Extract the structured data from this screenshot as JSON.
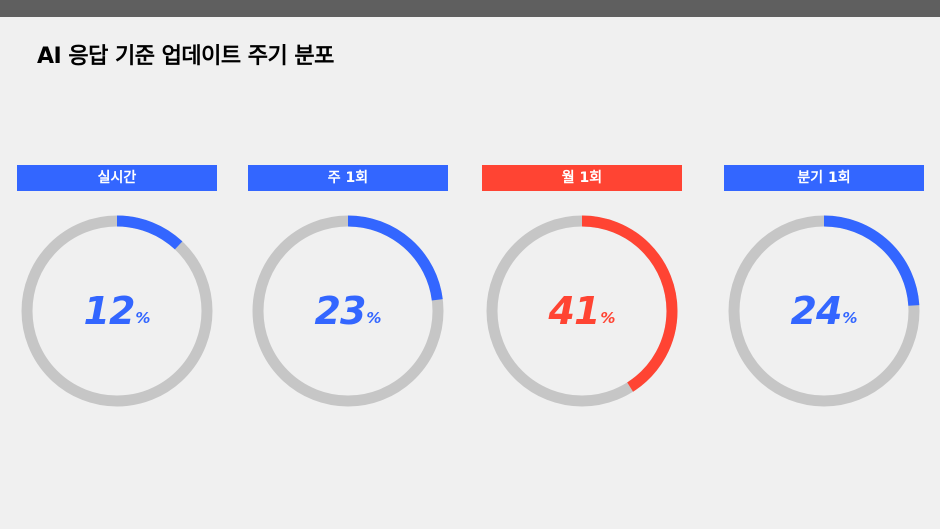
{
  "title": "AI 응답 기준 업데이트 주기 분포",
  "colors": {
    "blue": "#3366ff",
    "red": "#ff4433",
    "track": "#c6c6c6",
    "background": "#f0f0f0",
    "top_bar": "#5f5f5f"
  },
  "percent_sign": "%",
  "chart_data": {
    "type": "pie",
    "style": "donut",
    "categories": [
      "실시간",
      "주 1회",
      "월 1회",
      "분기 1회"
    ],
    "values": [
      12,
      23,
      41,
      24
    ],
    "unit": "%",
    "highlight": "월 1회"
  },
  "items": [
    {
      "label": "실시간",
      "value": 12,
      "color": "#3366ff"
    },
    {
      "label": "주 1회",
      "value": 23,
      "color": "#3366ff"
    },
    {
      "label": "월 1회",
      "value": 41,
      "color": "#ff4433"
    },
    {
      "label": "분기 1회",
      "value": 24,
      "color": "#3366ff"
    }
  ]
}
